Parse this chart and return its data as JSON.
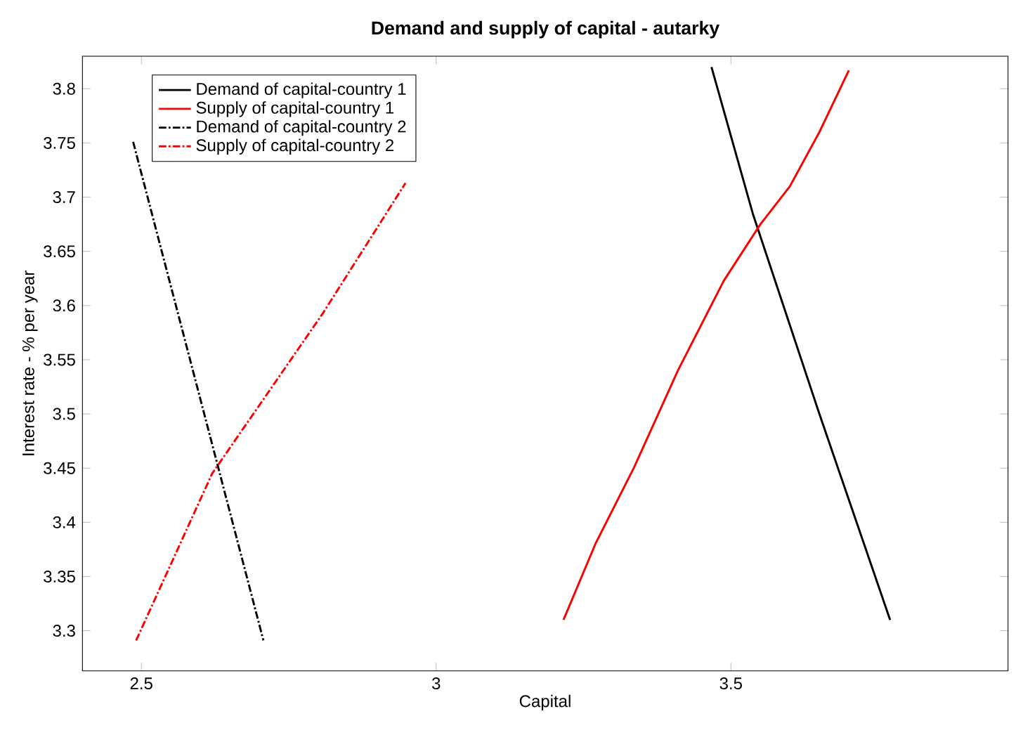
{
  "chart_data": {
    "type": "line",
    "title": "Demand and supply of capital - autarky",
    "xlabel": "Capital",
    "ylabel": "Interest rate - % per year",
    "xlim": [
      2.4,
      3.97
    ],
    "ylim": [
      3.263,
      3.83
    ],
    "xticks": [
      2.5,
      3,
      3.5
    ],
    "yticks": [
      3.3,
      3.35,
      3.4,
      3.45,
      3.5,
      3.55,
      3.6,
      3.65,
      3.7,
      3.75,
      3.8
    ],
    "legend": "top left",
    "marker": "none",
    "grid": false,
    "series": [
      {
        "name": "Demand of capital-country 1",
        "color": "#000000",
        "line_style": "solid",
        "x": [
          3.467,
          3.537,
          3.65,
          3.77
        ],
        "values": [
          3.82,
          3.685,
          3.5,
          3.31
        ]
      },
      {
        "name": "Supply of capital-country 1",
        "color": "#ff0000",
        "line_style": "solid",
        "x": [
          3.216,
          3.27,
          3.336,
          3.41,
          3.488,
          3.55,
          3.6,
          3.65,
          3.7
        ],
        "values": [
          3.31,
          3.38,
          3.451,
          3.54,
          3.623,
          3.675,
          3.71,
          3.76,
          3.817
        ]
      },
      {
        "name": "Demand of capital-country 2",
        "color": "#000000",
        "line_style": "dashdot",
        "x": [
          2.486,
          2.707
        ],
        "values": [
          3.751,
          3.291
        ]
      },
      {
        "name": "Supply of capital-country 2",
        "color": "#ff0000",
        "line_style": "dashdot",
        "x": [
          2.491,
          2.62,
          2.808,
          2.948
        ],
        "values": [
          3.291,
          3.445,
          3.593,
          3.713
        ]
      }
    ]
  }
}
